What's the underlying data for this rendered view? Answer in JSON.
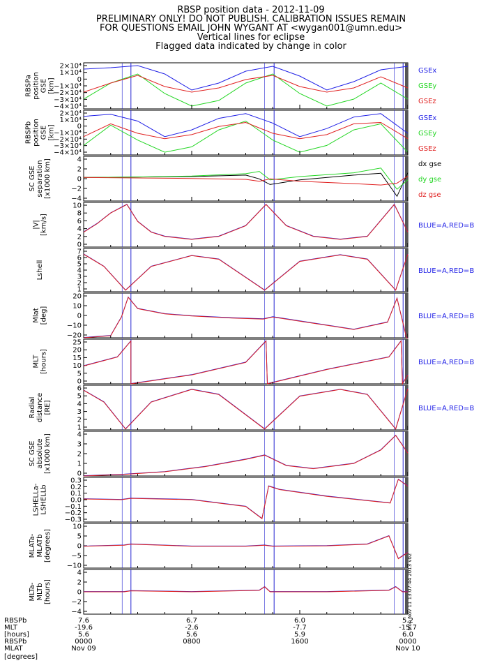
{
  "title_lines": [
    "RBSP position data - 2012-11-09",
    "PRELIMINARY ONLY! DO NOT PUBLISH. CALIBRATION ISSUES REMAIN",
    "FOR QUESTIONS EMAIL JOHN WYGANT AT <wygan001@umn.edu>",
    "Vertical lines for eclipse",
    "Flagged data indicated by change in color"
  ],
  "colors": {
    "blue": "#1f1fe6",
    "green": "#22d622",
    "red": "#e02020",
    "black": "#000000",
    "eclipse": "#2020d0"
  },
  "eclipse_hours": [
    2.85,
    3.5,
    13.4,
    14.1,
    23.0,
    23.65
  ],
  "stamp": "Mon Nov 11 13:07:44 2013 v02",
  "chart_data": [
    {
      "type": "line",
      "panel": "a_gse",
      "ylabel": [
        "RBSPa",
        "position",
        "GSE",
        "[km]"
      ],
      "ylim": [
        -42000,
        24000
      ],
      "yticks": [
        "2×10⁴",
        "1×10⁴",
        "0",
        "−1×10⁴",
        "−2×10⁴",
        "−3×10⁴",
        "−4×10⁴"
      ],
      "x_hours": [
        0,
        2,
        4,
        6,
        8,
        10,
        12,
        14,
        16,
        18,
        20,
        22,
        24
      ],
      "series": [
        {
          "name": "GSEx",
          "color": "blue",
          "values": [
            15000,
            17000,
            20000,
            8000,
            -15000,
            -5000,
            12000,
            19000,
            5000,
            -15000,
            -3000,
            14000,
            19000
          ]
        },
        {
          "name": "GSEy",
          "color": "green",
          "values": [
            -28000,
            -5000,
            8000,
            -20000,
            -38000,
            -30000,
            -5000,
            8000,
            -20000,
            -38000,
            -28000,
            -5000,
            -28000
          ]
        },
        {
          "name": "GSEz",
          "color": "red",
          "values": [
            -18000,
            -5000,
            6000,
            -10000,
            -18000,
            -12000,
            0,
            6000,
            -10000,
            -18000,
            -12000,
            4000,
            -12000
          ]
        }
      ]
    },
    {
      "type": "line",
      "panel": "b_gse",
      "ylabel": [
        "RBSPb",
        "position",
        "GSE",
        "[km]"
      ],
      "ylim": [
        -42000,
        24000
      ],
      "yticks": [
        "2×10⁴",
        "1×10⁴",
        "0",
        "−1×10⁴",
        "−2×10⁴",
        "−3×10⁴",
        "−4×10⁴"
      ],
      "x_hours": [
        0,
        2,
        4,
        6,
        8,
        10,
        12,
        14,
        16,
        18,
        20,
        22,
        24
      ],
      "series": [
        {
          "name": "GSEx",
          "color": "blue",
          "values": [
            15000,
            18000,
            8000,
            -15000,
            -5000,
            12000,
            19000,
            5000,
            -15000,
            -3000,
            14000,
            19000,
            -10000
          ]
        },
        {
          "name": "GSEy",
          "color": "green",
          "values": [
            -28000,
            2000,
            -20000,
            -38000,
            -30000,
            -5000,
            8000,
            -20000,
            -38000,
            -28000,
            -5000,
            4000,
            -38000
          ]
        },
        {
          "name": "GSEz",
          "color": "red",
          "values": [
            -15000,
            4000,
            -10000,
            -18000,
            -12000,
            0,
            6000,
            -10000,
            -18000,
            -12000,
            4000,
            6000,
            -18000
          ]
        }
      ]
    },
    {
      "type": "line",
      "panel": "sep",
      "ylabel": [
        "SC GSE",
        "separation",
        "[x1000 km]"
      ],
      "ylim": [
        -5,
        4.5
      ],
      "yticks": [
        "4",
        "2",
        "0",
        "−2",
        "−4"
      ],
      "x_hours": [
        0,
        4,
        8,
        12,
        13,
        13.8,
        16,
        20,
        22,
        23.2,
        24
      ],
      "series": [
        {
          "name": "dx gse",
          "color": "black",
          "values": [
            0,
            0.1,
            0.2,
            0.5,
            -0.3,
            -1.5,
            -0.5,
            0.5,
            0.9,
            -4,
            1
          ]
        },
        {
          "name": "dy gse",
          "color": "green",
          "values": [
            0,
            0.1,
            0.3,
            0.8,
            1.3,
            -0.5,
            0.2,
            1,
            2,
            -2.5,
            -0.5
          ]
        },
        {
          "name": "dz gse",
          "color": "red",
          "values": [
            0,
            -0.1,
            -0.2,
            -0.4,
            -0.8,
            -0.3,
            -0.8,
            -1.3,
            -1.6,
            -1.2,
            0.3
          ]
        }
      ]
    },
    {
      "type": "line",
      "panel": "v",
      "ylabel": [
        "|V|",
        "[km/s]"
      ],
      "ylim": [
        0,
        10.5
      ],
      "yticks": [
        "10",
        "8",
        "6",
        "4",
        "2",
        "0"
      ],
      "series_label": "BLUE=A,RED=B",
      "x_hours": [
        0,
        1,
        2,
        3.2,
        4,
        5,
        6,
        8,
        10,
        12,
        13.5,
        15,
        17,
        19,
        21,
        23,
        24
      ],
      "values": [
        3.5,
        5.5,
        8,
        10,
        6,
        3.5,
        2.5,
        1.8,
        2.5,
        5,
        10,
        5,
        2.5,
        1.8,
        2.5,
        10,
        3.5
      ]
    },
    {
      "type": "line",
      "panel": "lshell",
      "ylabel": [
        "Lshell"
      ],
      "ylim": [
        1,
        7
      ],
      "yticks": [
        "7",
        "6",
        "5",
        "4",
        "3",
        "2",
        "1"
      ],
      "series_label": "BLUE=A,RED=B",
      "x_hours": [
        0,
        1.5,
        3.1,
        5,
        8,
        10,
        13.4,
        16,
        19,
        21,
        23.1,
        24
      ],
      "values": [
        6.2,
        4.5,
        1.2,
        4.5,
        6,
        5.5,
        1.2,
        5.2,
        6.1,
        5.5,
        1.2,
        6.2
      ]
    },
    {
      "type": "line",
      "panel": "mlat",
      "ylabel": [
        "Mlat",
        "[deg]"
      ],
      "ylim": [
        -20,
        23
      ],
      "yticks": [
        "20",
        "10",
        "0",
        "−10",
        "−20"
      ],
      "series_label": "BLUE=A,RED=B",
      "x_hours": [
        0,
        2,
        2.8,
        3.3,
        4,
        6,
        8,
        11,
        13.3,
        14,
        16,
        18,
        20,
        22.5,
        23.2,
        23.9,
        24
      ],
      "values": [
        -20,
        -18,
        0,
        19,
        8,
        3,
        1,
        -1,
        -2,
        0,
        -4,
        -8,
        -12,
        -5,
        18,
        -20,
        -20
      ]
    },
    {
      "type": "line",
      "panel": "mlt",
      "ylabel": [
        "MLT",
        "[hours]"
      ],
      "ylim": [
        0,
        25
      ],
      "yticks": [
        "25",
        "20",
        "15",
        "10",
        "5",
        "0"
      ],
      "series_label": "BLUE=A,RED=B",
      "x_hours": [
        0,
        2.5,
        3.5,
        3.5,
        8,
        12,
        13.5,
        13.6,
        18,
        22.6,
        23.5,
        23.6,
        24
      ],
      "values": [
        10,
        15,
        24,
        0,
        5,
        12,
        24,
        0,
        8,
        15,
        24,
        0,
        5
      ]
    },
    {
      "type": "line",
      "panel": "rd",
      "ylabel": [
        "Radial",
        "distance",
        "[RE]"
      ],
      "ylim": [
        1,
        6.3
      ],
      "yticks": [
        "6",
        "5",
        "4",
        "3",
        "2",
        "1"
      ],
      "series_label": "BLUE=A,RED=B",
      "x_hours": [
        0,
        1.5,
        3.1,
        5,
        8,
        10,
        13.4,
        16,
        19,
        21,
        23.1,
        24
      ],
      "values": [
        5.7,
        4.3,
        1.1,
        4.3,
        5.8,
        5.2,
        1.1,
        5,
        5.8,
        5.2,
        1.1,
        5.9
      ]
    },
    {
      "type": "line",
      "panel": "abs",
      "ylabel": [
        "SC GSE",
        "absolute",
        "[x1000 km]"
      ],
      "ylim": [
        0,
        4.3
      ],
      "yticks": [
        "4",
        "3",
        "2",
        "1",
        "0"
      ],
      "x_hours": [
        0,
        3,
        6,
        9,
        12,
        13.4,
        15,
        17,
        20,
        22,
        23.1,
        24
      ],
      "values": [
        0,
        0.15,
        0.4,
        0.9,
        1.6,
        2,
        1,
        0.7,
        1.2,
        2.5,
        3.9,
        2.2
      ]
    },
    {
      "type": "line",
      "panel": "ls_diff",
      "ylabel": [
        "LSHELLa-",
        "LSHELLb"
      ],
      "ylim": [
        -0.33,
        0.33
      ],
      "yticks": [
        "0.3",
        "0.2",
        "0.1",
        "0.0",
        "−0.1",
        "−0.2",
        "−0.3"
      ],
      "x_hours": [
        0,
        2.8,
        3.5,
        8,
        12,
        13.2,
        13.7,
        14.5,
        18,
        22.7,
        23.3,
        24
      ],
      "values": [
        0.01,
        0,
        0.02,
        0,
        -0.1,
        -0.28,
        0.2,
        0.15,
        0.05,
        -0.05,
        0.3,
        0.2
      ]
    },
    {
      "type": "line",
      "panel": "mlat_diff",
      "ylabel": [
        "MLATa-",
        "MLATb",
        "[degrees]"
      ],
      "ylim": [
        -10.5,
        11
      ],
      "yticks": [
        "10",
        "5",
        "0",
        "−5",
        "−10"
      ],
      "x_hours": [
        0,
        3,
        3.5,
        8,
        12,
        13.4,
        14,
        18,
        21,
        22.6,
        23.3,
        24
      ],
      "values": [
        0,
        0.5,
        1,
        0,
        0,
        0.5,
        0,
        0.2,
        1,
        5,
        -6,
        -3
      ]
    },
    {
      "type": "line",
      "panel": "mlt_diff",
      "ylabel": [
        "MLTa-",
        "MLTb",
        "[hours]"
      ],
      "ylim": [
        -4.5,
        4.5
      ],
      "yticks": [
        "4",
        "2",
        "0",
        "−2",
        "−4"
      ],
      "x_hours": [
        0,
        3,
        3.5,
        8,
        13,
        13.4,
        13.8,
        18,
        22.6,
        23.1,
        23.6,
        24
      ],
      "values": [
        0,
        0,
        0.2,
        0,
        0.3,
        1,
        0,
        0,
        0.3,
        1,
        0,
        0
      ]
    }
  ],
  "xaxis": {
    "row_labels": [
      "RBSPb",
      "MLT",
      "[hours]",
      "RBSPb",
      "MLAT",
      "[degrees]"
    ],
    "ticks": [
      {
        "hour": 0,
        "mlt": "7.6",
        "mlat": "-19.6",
        "lshell": "5.6",
        "time": "0000",
        "date": "Nov 09"
      },
      {
        "hour": 8,
        "mlt": "6.7",
        "mlat": "-2.6",
        "lshell": "5.6",
        "time": "0800",
        "date": ""
      },
      {
        "hour": 16,
        "mlt": "6.0",
        "mlat": "-7.7",
        "lshell": "5.9",
        "time": "1600",
        "date": ""
      },
      {
        "hour": 24,
        "mlt": "5.2",
        "mlat": "-15.7",
        "lshell": "6.0",
        "time": "0000",
        "date": "Nov 10"
      }
    ]
  }
}
